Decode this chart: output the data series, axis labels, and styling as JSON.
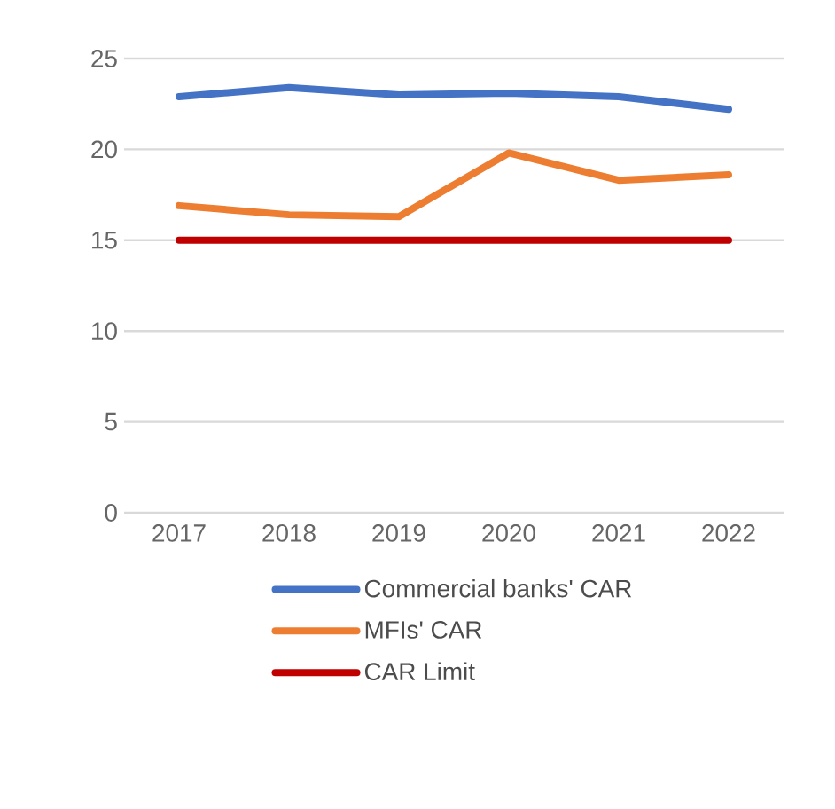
{
  "chart_data": {
    "type": "line",
    "categories": [
      "2017",
      "2018",
      "2019",
      "2020",
      "2021",
      "2022"
    ],
    "series": [
      {
        "name": "Commercial banks' CAR",
        "color": "#4472c4",
        "values": [
          22.9,
          23.4,
          23.0,
          23.1,
          22.9,
          22.2
        ]
      },
      {
        "name": "MFIs' CAR",
        "color": "#ed7d31",
        "values": [
          16.9,
          16.4,
          16.3,
          19.8,
          18.3,
          18.6
        ]
      },
      {
        "name": "CAR Limit",
        "color": "#c00000",
        "values": [
          15,
          15,
          15,
          15,
          15,
          15
        ]
      }
    ],
    "ylim": [
      0,
      25
    ],
    "yticks": [
      0,
      5,
      10,
      15,
      20,
      25
    ],
    "grid": "y",
    "legend": "bottom",
    "marker": "none",
    "line_style": "solid"
  }
}
